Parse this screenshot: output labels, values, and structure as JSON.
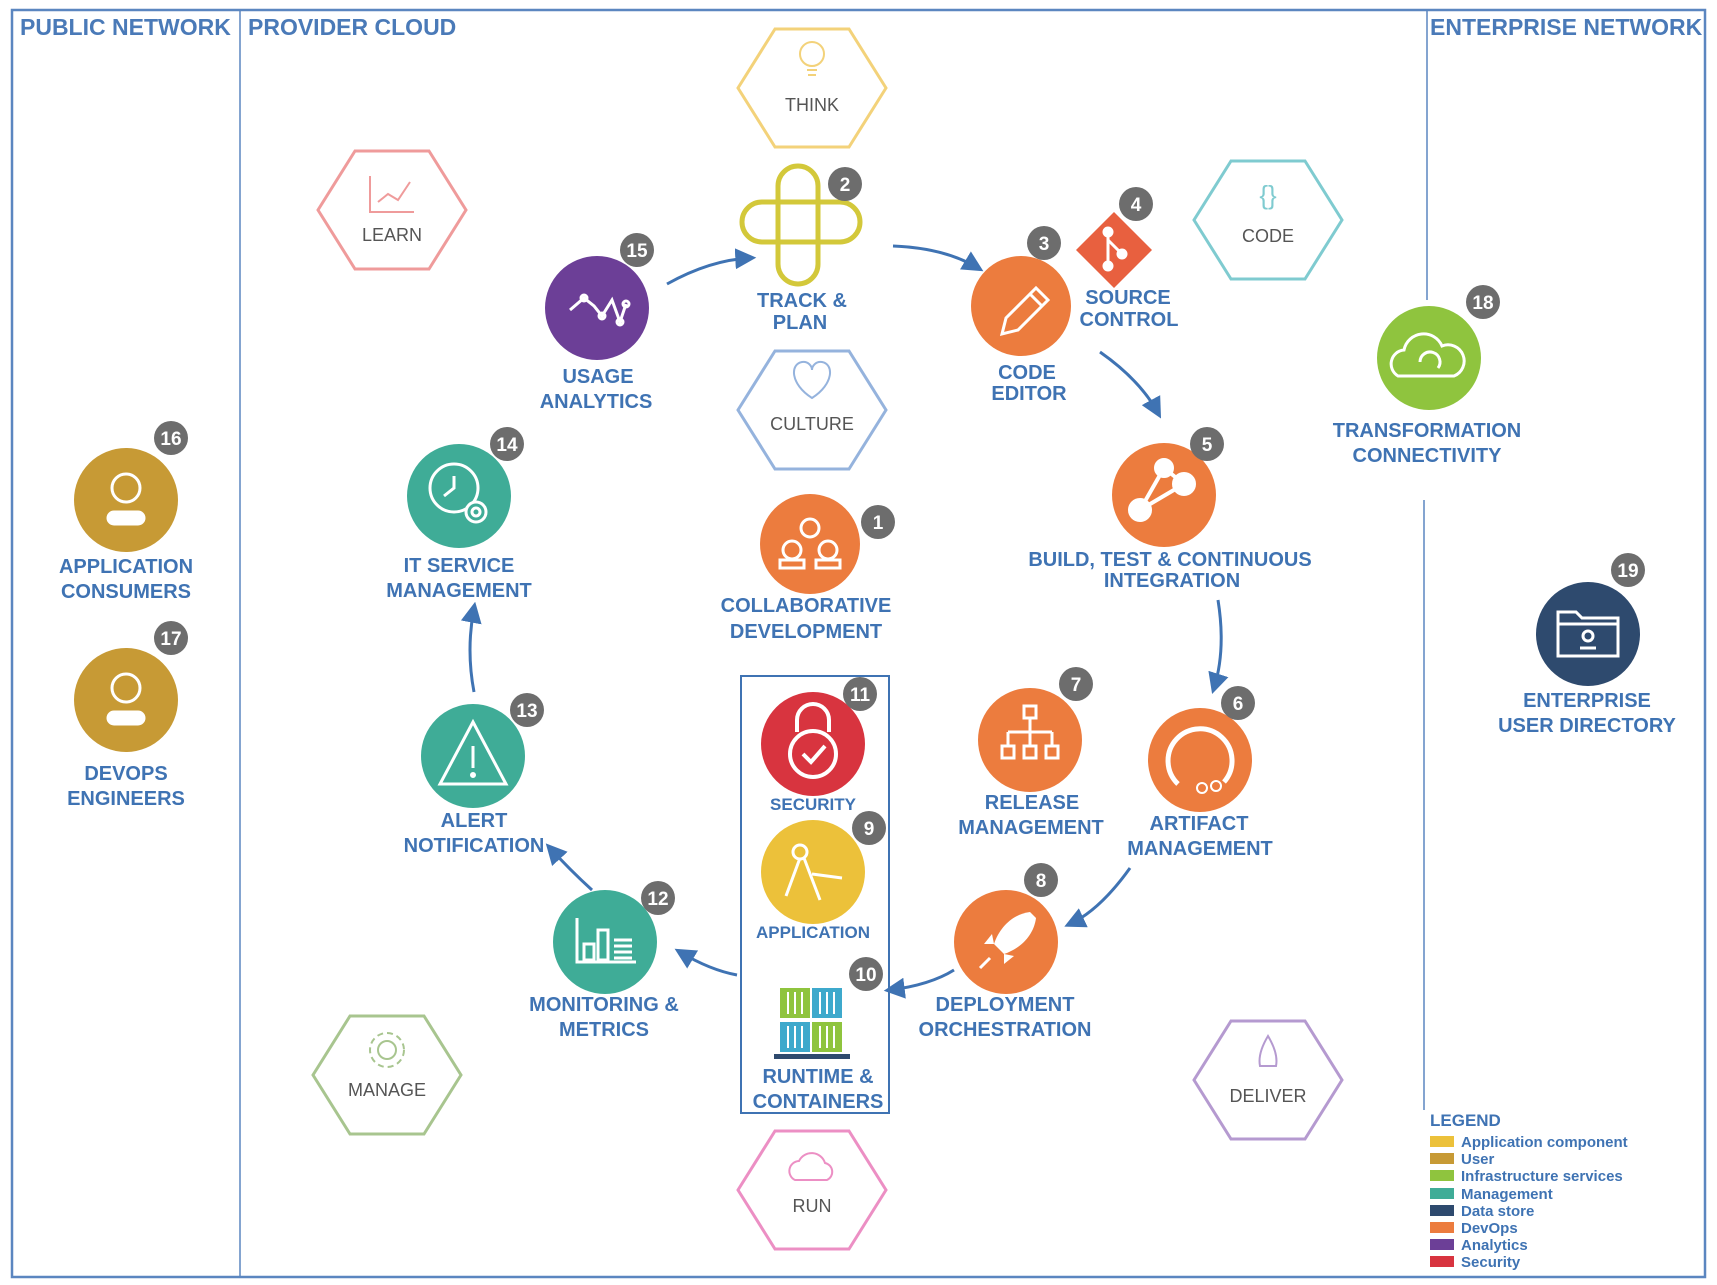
{
  "zones": {
    "public": "PUBLIC NETWORK",
    "provider": "PROVIDER CLOUD",
    "enterprise": "ENTERPRISE NETWORK"
  },
  "phases": [
    {
      "id": "think",
      "label": "THINK",
      "color": "#f3d27a"
    },
    {
      "id": "learn",
      "label": "LEARN",
      "color": "#ef9b9b"
    },
    {
      "id": "code",
      "label": "CODE",
      "color": "#7fcbd0"
    },
    {
      "id": "culture",
      "label": "CULTURE",
      "color": "#95b3dd"
    },
    {
      "id": "manage",
      "label": "MANAGE",
      "color": "#a8c58f"
    },
    {
      "id": "deliver",
      "label": "DELIVER",
      "color": "#b59ad0"
    },
    {
      "id": "run",
      "label": "RUN",
      "color": "#ec8fc4"
    }
  ],
  "nodes": [
    {
      "id": "collab",
      "num": "1",
      "lines": [
        "COLLABORATIVE",
        "DEVELOPMENT"
      ],
      "color": "#ec7c3e",
      "icon": "people-icon"
    },
    {
      "id": "track",
      "num": "2",
      "lines": [
        "TRACK &",
        "PLAN"
      ],
      "color": "#d3c83a",
      "icon": "track-plan-icon"
    },
    {
      "id": "editor",
      "num": "3",
      "lines": [
        "CODE",
        "EDITOR"
      ],
      "color": "#ec7c3e",
      "icon": "pencil-icon"
    },
    {
      "id": "source",
      "num": "4",
      "lines": [
        "SOURCE",
        "CONTROL"
      ],
      "color": "#e8603f",
      "icon": "git-icon"
    },
    {
      "id": "build",
      "num": "5",
      "lines": [
        "BUILD, TEST & CONTINUOUS",
        "INTEGRATION"
      ],
      "color": "#ec7c3e",
      "icon": "share-nodes-icon"
    },
    {
      "id": "artifact",
      "num": "6",
      "lines": [
        "ARTIFACT",
        "MANAGEMENT"
      ],
      "color": "#ec7c3e",
      "icon": "artifact-icon"
    },
    {
      "id": "release",
      "num": "7",
      "lines": [
        "RELEASE",
        "MANAGEMENT"
      ],
      "color": "#ec7c3e",
      "icon": "hierarchy-icon"
    },
    {
      "id": "deploy",
      "num": "8",
      "lines": [
        "DEPLOYMENT",
        "ORCHESTRATION"
      ],
      "color": "#ec7c3e",
      "icon": "rocket-icon"
    },
    {
      "id": "app",
      "num": "9",
      "lines": [
        "APPLICATION"
      ],
      "color": "#ecc13a",
      "icon": "compass-icon"
    },
    {
      "id": "runtime",
      "num": "10",
      "lines": [
        "RUNTIME &",
        "CONTAINERS"
      ],
      "color": "#3ea9a2",
      "icon": "containers-icon"
    },
    {
      "id": "security",
      "num": "11",
      "lines": [
        "SECURITY"
      ],
      "color": "#d8343f",
      "icon": "lock-icon"
    },
    {
      "id": "monitoring",
      "num": "12",
      "lines": [
        "MONITORING &",
        "METRICS"
      ],
      "color": "#3fac97",
      "icon": "bar-chart-icon"
    },
    {
      "id": "alert",
      "num": "13",
      "lines": [
        "ALERT",
        "NOTIFICATION"
      ],
      "color": "#3fac97",
      "icon": "warning-icon"
    },
    {
      "id": "itsm",
      "num": "14",
      "lines": [
        "IT SERVICE",
        "MANAGEMENT"
      ],
      "color": "#3fac97",
      "icon": "clock-gear-icon"
    },
    {
      "id": "usage",
      "num": "15",
      "lines": [
        "USAGE",
        "ANALYTICS"
      ],
      "color": "#6c3f97",
      "icon": "line-chart-icon"
    },
    {
      "id": "consumers",
      "num": "16",
      "lines": [
        "APPLICATION",
        "CONSUMERS"
      ],
      "color": "#c79a35",
      "icon": "user-icon"
    },
    {
      "id": "devops",
      "num": "17",
      "lines": [
        "DEVOPS",
        "ENGINEERS"
      ],
      "color": "#c79a35",
      "icon": "user-icon"
    },
    {
      "id": "transform",
      "num": "18",
      "lines": [
        "TRANSFORMATION",
        "CONNECTIVITY"
      ],
      "color": "#8fc43e",
      "icon": "cloud-icon"
    },
    {
      "id": "directory",
      "num": "19",
      "lines": [
        "ENTERPRISE",
        "USER DIRECTORY"
      ],
      "color": "#2e4a6e",
      "icon": "folder-user-icon"
    }
  ],
  "legend": {
    "title": "LEGEND",
    "items": [
      {
        "label": "Application component",
        "color": "#ecc13a"
      },
      {
        "label": "User",
        "color": "#c79a35"
      },
      {
        "label": "Infrastructure services",
        "color": "#8fc43e"
      },
      {
        "label": "Management",
        "color": "#3fac97"
      },
      {
        "label": "Data store",
        "color": "#2e4a6e"
      },
      {
        "label": "DevOps",
        "color": "#ec7c3e"
      },
      {
        "label": "Analytics",
        "color": "#6c3f97"
      },
      {
        "label": "Security",
        "color": "#d8343f"
      }
    ]
  },
  "colors": {
    "frame": "#5b86c0",
    "arrow": "#3f73b3",
    "badge": "#6d6d6d"
  }
}
